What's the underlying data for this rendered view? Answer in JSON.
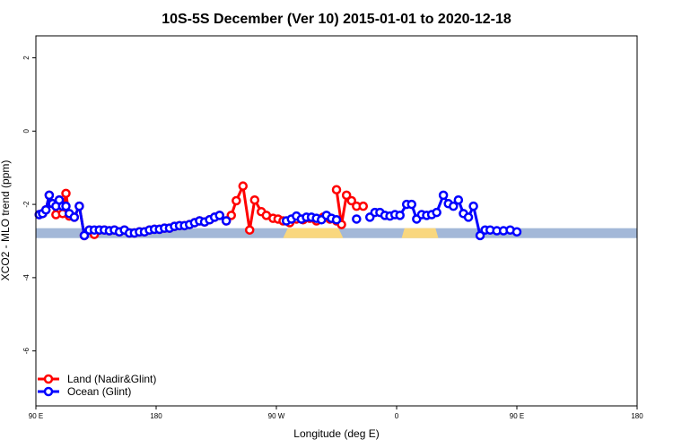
{
  "chart_data": {
    "type": "line",
    "title": "10S-5S December (Ver 10)   2015-01-01 to 2020-12-18",
    "xlabel": "Longitude (deg E)",
    "ylabel": "XCO2 - MLO trend (ppm)",
    "xlim": [
      90,
      450
    ],
    "ylim": [
      -7.5,
      2.6
    ],
    "x_ticks": [
      {
        "value": 90,
        "label": "90 E"
      },
      {
        "value": 162,
        "label": "180"
      },
      {
        "value": 234,
        "label": "90 W"
      },
      {
        "value": 306,
        "label": "0"
      },
      {
        "value": 378,
        "label": "90 E"
      },
      {
        "value": 450,
        "label": "180"
      }
    ],
    "y_ticks": [
      {
        "value": 2,
        "label": "2"
      },
      {
        "value": 0,
        "label": "0"
      },
      {
        "value": -2,
        "label": "-2"
      },
      {
        "value": -4,
        "label": "-4"
      },
      {
        "value": -6,
        "label": "-6"
      }
    ],
    "legend_position": "bottom-left",
    "background_band": {
      "y_range": [
        -2.92,
        -2.65
      ],
      "ocean_color": "#a3b8d8",
      "land_color": "#f9d77e",
      "land_segments": [
        [
          238,
          274
        ],
        [
          309,
          331
        ],
        [
          450,
          460
        ]
      ]
    },
    "series": [
      {
        "name": "Land (Nadir&Glint)",
        "color": "#ff0000",
        "points": [
          [
            92,
            -2.28
          ],
          [
            94,
            -2.25
          ],
          [
            96,
            -2.15
          ],
          [
            98,
            -1.75
          ],
          [
            100,
            -1.98
          ],
          [
            102,
            -2.28
          ],
          [
            104,
            -1.88
          ],
          [
            106,
            -2.25
          ],
          [
            108,
            -1.7
          ],
          [
            110,
            -2.32
          ],
          [
            113,
            -2.35
          ],
          [
            116,
            -2.05
          ],
          [
            119,
            -2.85
          ],
          [
            122,
            -2.7
          ],
          [
            125,
            -2.82
          ],
          [
            128,
            -2.7
          ],
          [
            131,
            -2.7
          ],
          [
            134,
            -2.72
          ],
          [
            137,
            -2.7
          ],
          [
            140,
            -2.75
          ],
          [
            143,
            -2.7
          ],
          [
            146,
            -2.78
          ],
          [
            149,
            -2.78
          ],
          [
            152,
            -2.75
          ],
          [
            155,
            -2.75
          ],
          [
            158,
            -2.7
          ],
          [
            161,
            -2.68
          ],
          [
            164,
            -2.68
          ],
          [
            167,
            -2.65
          ],
          [
            170,
            -2.65
          ],
          [
            173,
            -2.6
          ],
          [
            176,
            -2.58
          ],
          [
            179,
            -2.58
          ],
          [
            182,
            -2.55
          ],
          [
            185,
            -2.5
          ],
          [
            188,
            -2.45
          ],
          [
            191,
            -2.48
          ],
          [
            194,
            -2.42
          ],
          [
            197,
            -2.35
          ],
          [
            200,
            -2.3
          ],
          [
            204,
            -2.45
          ],
          [
            207,
            -2.3
          ],
          [
            210,
            -1.9
          ],
          [
            214,
            -1.5
          ],
          [
            218,
            -2.7
          ],
          [
            221,
            -1.88
          ],
          [
            225,
            -2.2
          ],
          [
            228,
            -2.3
          ],
          [
            232,
            -2.38
          ],
          [
            235,
            -2.4
          ],
          [
            238,
            -2.45
          ],
          [
            242,
            -2.5
          ],
          [
            246,
            -2.4
          ],
          [
            250,
            -2.42
          ],
          [
            254,
            -2.38
          ],
          [
            258,
            -2.45
          ],
          [
            262,
            -2.35
          ],
          [
            266,
            -2.4
          ],
          [
            270,
            -2.45
          ],
          [
            270,
            -1.6
          ],
          [
            273,
            -2.55
          ],
          [
            276,
            -1.75
          ],
          [
            279,
            -1.9
          ],
          [
            282,
            -2.05
          ],
          [
            286,
            -2.05
          ]
        ]
      },
      {
        "name": "Ocean (Glint)",
        "color": "#0000ff",
        "points": [
          [
            92,
            -2.28
          ],
          [
            94,
            -2.25
          ],
          [
            96,
            -2.15
          ],
          [
            98,
            -1.75
          ],
          [
            100,
            -1.98
          ],
          [
            102,
            -2.05
          ],
          [
            104,
            -1.88
          ],
          [
            106,
            -2.05
          ],
          [
            108,
            -2.05
          ],
          [
            110,
            -2.25
          ],
          [
            113,
            -2.35
          ],
          [
            116,
            -2.05
          ],
          [
            119,
            -2.85
          ],
          [
            122,
            -2.7
          ],
          [
            125,
            -2.7
          ],
          [
            128,
            -2.7
          ],
          [
            131,
            -2.7
          ],
          [
            134,
            -2.72
          ],
          [
            137,
            -2.7
          ],
          [
            140,
            -2.75
          ],
          [
            143,
            -2.7
          ],
          [
            146,
            -2.78
          ],
          [
            149,
            -2.78
          ],
          [
            152,
            -2.75
          ],
          [
            155,
            -2.75
          ],
          [
            158,
            -2.7
          ],
          [
            161,
            -2.68
          ],
          [
            164,
            -2.68
          ],
          [
            167,
            -2.65
          ],
          [
            170,
            -2.65
          ],
          [
            173,
            -2.6
          ],
          [
            176,
            -2.58
          ],
          [
            179,
            -2.58
          ],
          [
            182,
            -2.55
          ],
          [
            185,
            -2.5
          ],
          [
            188,
            -2.45
          ],
          [
            191,
            -2.48
          ],
          [
            194,
            -2.42
          ],
          [
            197,
            -2.35
          ],
          [
            200,
            -2.3
          ],
          [
            204,
            -2.45
          ],
          [
            240,
            -2.45
          ],
          [
            243,
            -2.4
          ],
          [
            246,
            -2.32
          ],
          [
            249,
            -2.4
          ],
          [
            252,
            -2.35
          ],
          [
            255,
            -2.35
          ],
          [
            258,
            -2.38
          ],
          [
            261,
            -2.42
          ],
          [
            264,
            -2.3
          ],
          [
            267,
            -2.38
          ],
          [
            270,
            -2.42
          ],
          [
            282,
            -2.4
          ],
          [
            290,
            -2.35
          ],
          [
            293,
            -2.22
          ],
          [
            296,
            -2.22
          ],
          [
            299,
            -2.3
          ],
          [
            302,
            -2.32
          ],
          [
            305,
            -2.28
          ],
          [
            308,
            -2.3
          ],
          [
            312,
            -2.0
          ],
          [
            315,
            -2.0
          ],
          [
            318,
            -2.4
          ],
          [
            321,
            -2.28
          ],
          [
            324,
            -2.3
          ],
          [
            327,
            -2.28
          ],
          [
            330,
            -2.22
          ],
          [
            334,
            -1.75
          ],
          [
            337,
            -1.98
          ],
          [
            340,
            -2.05
          ],
          [
            343,
            -1.88
          ],
          [
            346,
            -2.25
          ],
          [
            349,
            -2.35
          ],
          [
            352,
            -2.05
          ],
          [
            356,
            -2.85
          ],
          [
            359,
            -2.7
          ],
          [
            362,
            -2.7
          ],
          [
            366,
            -2.72
          ],
          [
            370,
            -2.72
          ],
          [
            374,
            -2.7
          ],
          [
            378,
            -2.75
          ]
        ]
      }
    ]
  }
}
